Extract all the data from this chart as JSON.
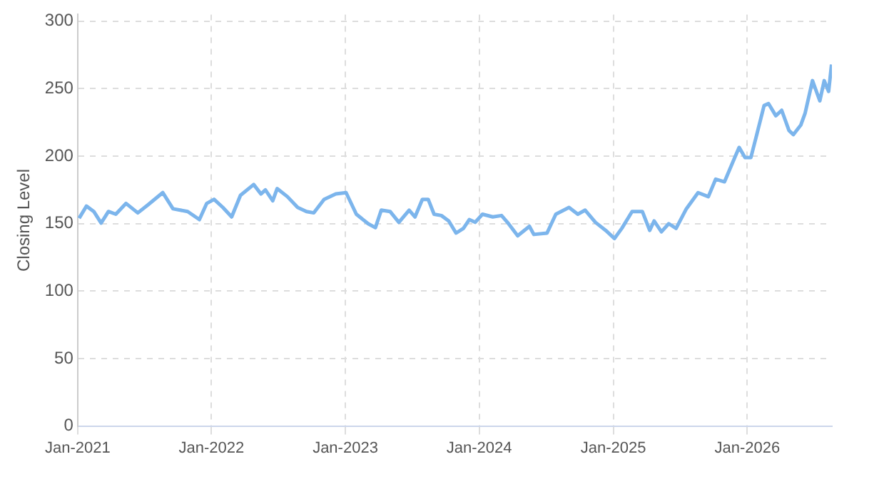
{
  "chart_data": {
    "type": "line",
    "ylabel": "Closing Level",
    "x": [
      "2021-01-05",
      "2021-01-25",
      "2021-02-14",
      "2021-03-06",
      "2021-03-26",
      "2021-04-15",
      "2021-05-13",
      "2021-06-14",
      "2021-07-12",
      "2021-08-21",
      "2021-09-18",
      "2021-10-28",
      "2021-11-29",
      "2021-12-19",
      "2022-01-08",
      "2022-02-01",
      "2022-02-25",
      "2022-03-21",
      "2022-04-26",
      "2022-05-16",
      "2022-05-28",
      "2022-06-17",
      "2022-06-29",
      "2022-07-27",
      "2022-08-24",
      "2022-09-17",
      "2022-10-07",
      "2022-11-04",
      "2022-12-06",
      "2023-01-03",
      "2023-01-31",
      "2023-03-04",
      "2023-03-24",
      "2023-04-09",
      "2023-05-03",
      "2023-05-27",
      "2023-06-24",
      "2023-07-10",
      "2023-07-30",
      "2023-08-15",
      "2023-08-31",
      "2023-09-20",
      "2023-10-10",
      "2023-10-30",
      "2023-11-19",
      "2023-12-05",
      "2023-12-21",
      "2024-01-10",
      "2024-02-07",
      "2024-03-02",
      "2024-03-18",
      "2024-04-15",
      "2024-05-17",
      "2024-05-29",
      "2024-07-04",
      "2024-07-28",
      "2024-09-02",
      "2024-09-26",
      "2024-10-16",
      "2024-11-13",
      "2024-12-11",
      "2025-01-04",
      "2025-01-24",
      "2025-02-21",
      "2025-03-21",
      "2025-04-10",
      "2025-04-22",
      "2025-05-12",
      "2025-06-01",
      "2025-06-21",
      "2025-07-19",
      "2025-08-20",
      "2025-09-17",
      "2025-10-07",
      "2025-10-31",
      "2025-11-28",
      "2025-12-10",
      "2025-12-26",
      "2026-01-11",
      "2026-01-27",
      "2026-02-16",
      "2026-02-28",
      "2026-03-20",
      "2026-04-05",
      "2026-04-25",
      "2026-05-07",
      "2026-05-27",
      "2026-06-08",
      "2026-06-28",
      "2026-07-18",
      "2026-07-30",
      "2026-08-11",
      "2026-08-19"
    ],
    "series": [
      {
        "color": "#7cb5ec",
        "values": [
          154,
          163,
          159,
          150.5,
          159,
          157,
          165,
          158,
          164,
          173,
          161,
          159,
          153,
          165,
          168,
          162,
          155,
          171,
          179,
          172,
          175,
          167,
          176,
          170,
          162,
          159,
          158,
          168,
          172,
          173,
          157,
          150,
          147,
          160,
          159,
          151,
          160,
          155,
          168,
          168,
          157,
          156,
          152,
          143,
          146.5,
          153,
          151,
          157,
          155,
          156,
          151,
          141,
          148,
          142,
          143,
          157,
          162,
          157,
          160,
          151,
          145,
          139,
          146.5,
          159,
          159,
          145,
          152,
          144,
          150,
          146.5,
          161,
          173,
          170,
          183,
          181,
          199,
          206.5,
          199,
          199,
          216,
          237.5,
          239,
          230,
          234,
          219,
          216,
          223,
          232,
          256,
          241,
          256,
          248,
          268
        ]
      }
    ],
    "xlim": [
      "2021-01-01",
      "2026-08-20"
    ],
    "xticks": [
      {
        "value": "2021-01-01",
        "label": "Jan-2021"
      },
      {
        "value": "2022-01-01",
        "label": "Jan-2022"
      },
      {
        "value": "2023-01-01",
        "label": "Jan-2023"
      },
      {
        "value": "2024-01-01",
        "label": "Jan-2024"
      },
      {
        "value": "2025-01-01",
        "label": "Jan-2025"
      },
      {
        "value": "2026-01-01",
        "label": "Jan-2026"
      }
    ],
    "ylim": [
      0,
      305
    ],
    "yticks": [
      0,
      50,
      100,
      150,
      200,
      250,
      300
    ],
    "grid": true,
    "legend": false,
    "marker": "none",
    "line_style": "solid"
  }
}
